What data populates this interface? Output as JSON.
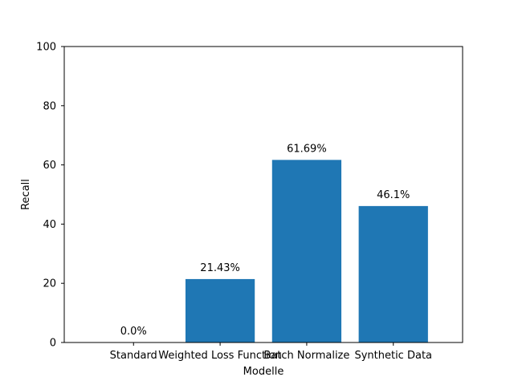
{
  "chart_data": {
    "type": "bar",
    "categories": [
      "Standard",
      "Weighted Loss Function",
      "Batch Normalize",
      "Synthetic Data"
    ],
    "values": [
      0.0,
      21.43,
      61.69,
      46.1
    ],
    "data_labels": [
      "0.0%",
      "21.43%",
      "61.69%",
      "46.1%"
    ],
    "xlabel": "Modelle",
    "ylabel": "Recall",
    "ylim": [
      0,
      100
    ],
    "yticks": [
      0,
      20,
      40,
      60,
      80,
      100
    ],
    "ytick_labels": [
      "0",
      "20",
      "40",
      "60",
      "80",
      "100"
    ],
    "bar_color": "#1f77b4",
    "grid": false,
    "legend": "none"
  }
}
